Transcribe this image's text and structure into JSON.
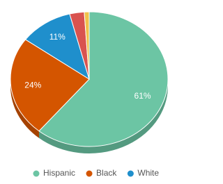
{
  "chart_data": {
    "type": "pie",
    "categories": [
      "Hispanic",
      "Black",
      "White",
      null,
      null
    ],
    "values": [
      61,
      24,
      11,
      3,
      1
    ],
    "value_labels": [
      "61%",
      "24%",
      "11%",
      null,
      null
    ],
    "colors": [
      "#6cc5a4",
      "#d45500",
      "#1f8fcc",
      "#d9534f",
      "#f0c24b"
    ],
    "legend": "bottom"
  }
}
